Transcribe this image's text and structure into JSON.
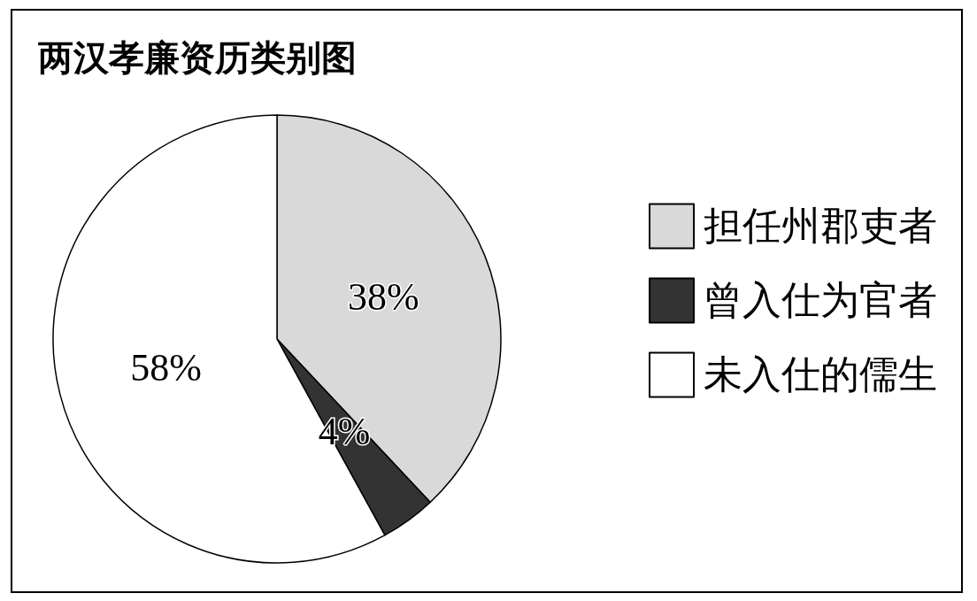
{
  "chart_data": {
    "type": "pie",
    "title": "两汉孝廉资历类别图",
    "categories": [
      "担任州郡吏者",
      "曾入仕为官者",
      "未入仕的儒生"
    ],
    "values": [
      38,
      4,
      58
    ],
    "value_labels": [
      "38%",
      "4%",
      "58%"
    ],
    "colors": [
      "#d9d9d9",
      "#333333",
      "#ffffff"
    ],
    "legend": "right"
  }
}
